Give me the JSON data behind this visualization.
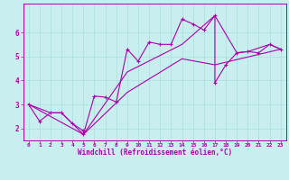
{
  "xlabel": "Windchill (Refroidissement éolien,°C)",
  "ylabel": "",
  "bg_color": "#c8eef0",
  "line_color": "#aa00aa",
  "grid_color": "#aadddd",
  "axis_color": "#aa00aa",
  "xlim": [
    -0.5,
    23.5
  ],
  "ylim": [
    1.5,
    7.2
  ],
  "xticks": [
    0,
    1,
    2,
    3,
    4,
    5,
    6,
    7,
    8,
    9,
    10,
    11,
    12,
    13,
    14,
    15,
    16,
    17,
    18,
    19,
    20,
    21,
    22,
    23
  ],
  "yticks": [
    2,
    3,
    4,
    5,
    6
  ],
  "series": [
    [
      0,
      3.0
    ],
    [
      1,
      2.3
    ],
    [
      2,
      2.65
    ],
    [
      3,
      2.65
    ],
    [
      4,
      2.2
    ],
    [
      5,
      1.9
    ],
    [
      5,
      1.75
    ],
    [
      6,
      3.35
    ],
    [
      7,
      3.3
    ],
    [
      8,
      3.1
    ],
    [
      9,
      5.3
    ],
    [
      10,
      4.8
    ],
    [
      11,
      5.6
    ],
    [
      12,
      5.5
    ],
    [
      13,
      5.5
    ],
    [
      14,
      6.55
    ],
    [
      15,
      6.35
    ],
    [
      16,
      6.1
    ],
    [
      17,
      6.7
    ],
    [
      17,
      3.9
    ],
    [
      18,
      4.65
    ],
    [
      19,
      5.15
    ],
    [
      20,
      5.2
    ],
    [
      21,
      5.15
    ],
    [
      22,
      5.5
    ],
    [
      23,
      5.3
    ]
  ],
  "series2": [
    [
      0,
      3.0
    ],
    [
      2,
      2.65
    ],
    [
      3,
      2.65
    ],
    [
      5,
      1.75
    ],
    [
      9,
      4.35
    ],
    [
      14,
      5.5
    ],
    [
      17,
      6.7
    ],
    [
      19,
      5.15
    ],
    [
      20,
      5.2
    ],
    [
      22,
      5.5
    ],
    [
      23,
      5.3
    ]
  ],
  "series3": [
    [
      0,
      3.0
    ],
    [
      5,
      1.75
    ],
    [
      9,
      3.5
    ],
    [
      14,
      4.9
    ],
    [
      17,
      4.65
    ],
    [
      23,
      5.3
    ]
  ]
}
